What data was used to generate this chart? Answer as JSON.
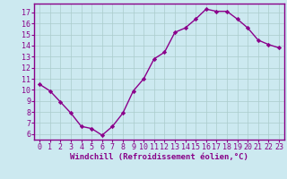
{
  "x": [
    0,
    1,
    2,
    3,
    4,
    5,
    6,
    7,
    8,
    9,
    10,
    11,
    12,
    13,
    14,
    15,
    16,
    17,
    18,
    19,
    20,
    21,
    22,
    23
  ],
  "y": [
    10.5,
    9.9,
    8.9,
    7.9,
    6.7,
    6.5,
    5.9,
    6.7,
    7.9,
    9.9,
    11.0,
    12.8,
    13.4,
    15.2,
    15.6,
    16.4,
    17.3,
    17.1,
    17.1,
    16.4,
    15.6,
    14.5,
    14.1,
    13.8
  ],
  "line_color": "#8B008B",
  "marker": "D",
  "marker_size": 2.2,
  "xlabel": "Windchill (Refroidissement éolien,°C)",
  "xlim": [
    -0.5,
    23.5
  ],
  "ylim": [
    5.5,
    17.8
  ],
  "yticks": [
    6,
    7,
    8,
    9,
    10,
    11,
    12,
    13,
    14,
    15,
    16,
    17
  ],
  "xticks": [
    0,
    1,
    2,
    3,
    4,
    5,
    6,
    7,
    8,
    9,
    10,
    11,
    12,
    13,
    14,
    15,
    16,
    17,
    18,
    19,
    20,
    21,
    22,
    23
  ],
  "bg_color": "#cce9f0",
  "grid_color": "#aacccc",
  "axis_color": "#880088",
  "tick_label_color": "#880088",
  "xlabel_color": "#880088",
  "line_width": 1.0,
  "xlabel_fontsize": 6.5,
  "tick_fontsize": 6.0
}
